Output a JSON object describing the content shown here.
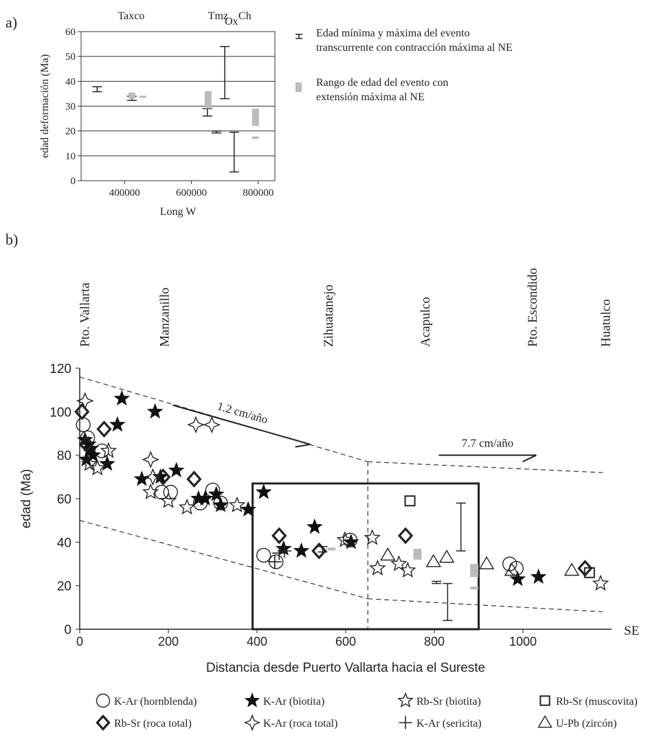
{
  "chart_data": [
    {
      "panel_label": "a)",
      "type": "range",
      "xlabel": "Long W",
      "ylabel": "edad deformación (Ma)",
      "xlim": [
        270000,
        850000
      ],
      "ylim": [
        0,
        60
      ],
      "xticks": [
        400000,
        600000,
        800000
      ],
      "yticks": [
        0,
        10,
        20,
        30,
        40,
        50,
        60
      ],
      "grid": true,
      "top_labels": [
        {
          "text": "Taxco",
          "x": 420000
        },
        {
          "text": "Tmz",
          "x": 680000
        },
        {
          "text": "Ox",
          "x": 720000,
          "subscript": true
        },
        {
          "text": "Ch",
          "x": 760000
        }
      ],
      "legend": {
        "placement": "right",
        "entries": [
          {
            "symbol": "error-bar",
            "text": "Edad mínima y máxima del evento",
            "text2": "transcurrente con contracción máxima al NE"
          },
          {
            "symbol": "gray-bar",
            "text": "Rango de edad del evento con",
            "text2": "extensión máxima al NE"
          }
        ]
      },
      "series": [
        {
          "name": "Edad mínima y máxima del evento transcurrente con contracción máxima al NE",
          "kind": "error-bar",
          "color": "#222222",
          "points": [
            {
              "x": 318000,
              "min": 35.8,
              "max": 37.8
            },
            {
              "x": 422000,
              "min": 32.3,
              "max": 34.0
            },
            {
              "x": 648000,
              "min": 26.0,
              "max": 29.0
            },
            {
              "x": 675000,
              "min": 19.2,
              "max": 20.0
            },
            {
              "x": 700000,
              "min": 33.0,
              "max": 54.0
            },
            {
              "x": 728000,
              "min": 3.5,
              "max": 19.5
            }
          ]
        },
        {
          "name": "Rango de edad del evento con extensión máxima al NE",
          "kind": "gray-bar",
          "color": "#bbbbbb",
          "points": [
            {
              "x": 422000,
              "min": 33.0,
              "max": 35.5
            },
            {
              "x": 455000,
              "min": 33.8,
              "max": 34.2
            },
            {
              "x": 650000,
              "min": 29.0,
              "max": 36.0
            },
            {
              "x": 792000,
              "min": 22.0,
              "max": 29.0
            },
            {
              "x": 792000,
              "min": 16.8,
              "max": 17.8
            }
          ]
        }
      ]
    },
    {
      "panel_label": "b)",
      "type": "scatter",
      "xlabel": "Distancia desde Puerto Vallarta hacia el Sureste",
      "ylabel": "edad (Ma)",
      "xlim": [
        0,
        1200
      ],
      "ylim": [
        0,
        120
      ],
      "xticks": [
        0,
        200,
        400,
        600,
        800,
        1000
      ],
      "yticks": [
        0,
        20,
        40,
        60,
        80,
        100,
        120
      ],
      "grid": false,
      "se_label": "SE",
      "locations": [
        {
          "name": "Pto. Vallarta",
          "x": 10
        },
        {
          "name": "Manzanillo",
          "x": 190
        },
        {
          "name": "Zihuatanejo",
          "x": 560
        },
        {
          "name": "Acapulco",
          "x": 778
        },
        {
          "name": "Pto. Escondido",
          "x": 1020
        },
        {
          "name": "Huatulco",
          "x": 1185
        }
      ],
      "rate_annotations": [
        {
          "text": "1.2 cm/año",
          "arrow_from": [
            210,
            103
          ],
          "arrow_to": [
            520,
            85
          ]
        },
        {
          "text": "7.7 cm/año",
          "arrow_from": [
            810,
            80
          ],
          "arrow_to": [
            1030,
            80
          ]
        }
      ],
      "envelope_lines": [
        {
          "points": [
            [
              0,
              116
            ],
            [
              650,
              77
            ]
          ]
        },
        {
          "points": [
            [
              650,
              77
            ],
            [
              1180,
              72
            ]
          ]
        },
        {
          "points": [
            [
              0,
              50
            ],
            [
              650,
              14
            ]
          ]
        },
        {
          "points": [
            [
              650,
              14
            ],
            [
              1180,
              8
            ]
          ]
        }
      ],
      "dashed_divider_x": 650,
      "highlight_box": {
        "x": [
          390,
          900
        ],
        "y": [
          0,
          67
        ]
      },
      "legend": {
        "placement": "bottom",
        "entries": [
          {
            "symbol": "circle",
            "text": "K-Ar (hornblenda)"
          },
          {
            "symbol": "filled-star",
            "text": "K-Ar (biotita)"
          },
          {
            "symbol": "open-star",
            "text": "Rb-Sr (biotita)"
          },
          {
            "symbol": "square",
            "text": "Rb-Sr (muscovita)"
          },
          {
            "symbol": "diamond",
            "text": "Rb-Sr (roca total)"
          },
          {
            "symbol": "open-4-star",
            "text": "K-Ar (roca total)"
          },
          {
            "symbol": "cross",
            "text": "K-Ar (sericita)"
          },
          {
            "symbol": "triangle",
            "text": "U-Pb (zircón)"
          }
        ]
      },
      "series": [
        {
          "name": "K-Ar (hornblenda)",
          "marker": "circle",
          "points": [
            [
              8,
              94
            ],
            [
              18,
              88
            ],
            [
              50,
              82
            ],
            [
              185,
              63
            ],
            [
              205,
              63
            ],
            [
              272,
              58
            ],
            [
              300,
              64
            ],
            [
              318,
              58
            ],
            [
              415,
              34
            ],
            [
              443,
              31
            ],
            [
              610,
              41
            ],
            [
              970,
              30
            ],
            [
              985,
              28
            ]
          ]
        },
        {
          "name": "K-Ar (biotita)",
          "marker": "filled-star",
          "points": [
            [
              12,
              87
            ],
            [
              20,
              85
            ],
            [
              25,
              83
            ],
            [
              30,
              80
            ],
            [
              15,
              78
            ],
            [
              62,
              76
            ],
            [
              85,
              94
            ],
            [
              95,
              106
            ],
            [
              140,
              69
            ],
            [
              170,
              100
            ],
            [
              182,
              70
            ],
            [
              218,
              73
            ],
            [
              268,
              60
            ],
            [
              283,
              60
            ],
            [
              308,
              62
            ],
            [
              318,
              57
            ],
            [
              380,
              55
            ],
            [
              415,
              63
            ],
            [
              460,
              37
            ],
            [
              500,
              36
            ],
            [
              530,
              47
            ],
            [
              612,
              40
            ],
            [
              988,
              23
            ],
            [
              1035,
              24
            ]
          ]
        },
        {
          "name": "Rb-Sr (biotita)",
          "marker": "open-star",
          "points": [
            [
              22,
              76
            ],
            [
              40,
              74
            ],
            [
              65,
              82
            ],
            [
              160,
              63
            ],
            [
              200,
              59
            ],
            [
              242,
              56
            ],
            [
              355,
              57
            ],
            [
              598,
              41
            ],
            [
              660,
              42
            ],
            [
              672,
              28
            ],
            [
              720,
              30
            ],
            [
              740,
              27
            ],
            [
              1175,
              21
            ]
          ]
        },
        {
          "name": "Rb-Sr (muscovita)",
          "marker": "square",
          "points": [
            [
              745,
              59
            ],
            [
              1150,
              26
            ]
          ]
        },
        {
          "name": "Rb-Sr (roca total)",
          "marker": "diamond",
          "points": [
            [
              5,
              100
            ],
            [
              15,
              85
            ],
            [
              55,
              92
            ],
            [
              188,
              70
            ],
            [
              258,
              69
            ],
            [
              450,
              43
            ],
            [
              540,
              36
            ],
            [
              735,
              43
            ],
            [
              1140,
              28
            ]
          ]
        },
        {
          "name": "K-Ar (roca total)",
          "marker": "open-4-star",
          "points": [
            [
              12,
              105
            ],
            [
              160,
              78
            ],
            [
              165,
              70
            ],
            [
              262,
              94
            ],
            [
              298,
              94
            ]
          ]
        },
        {
          "name": "K-Ar (sericita)",
          "marker": "cross",
          "points": [
            [
              450,
              35
            ],
            [
              462,
              36
            ],
            [
              440,
              31
            ]
          ]
        },
        {
          "name": "U-Pb (zircón)",
          "marker": "triangle",
          "points": [
            [
              695,
              34
            ],
            [
              798,
              31
            ],
            [
              828,
              33
            ],
            [
              918,
              30
            ],
            [
              975,
              27
            ],
            [
              1110,
              27
            ]
          ]
        }
      ],
      "range_bars": [
        {
          "kind": "error-bar",
          "x": 860,
          "min": 36,
          "max": 58
        },
        {
          "kind": "error-bar",
          "x": 805,
          "min": 21,
          "max": 22
        },
        {
          "kind": "error-bar",
          "x": 830,
          "min": 4,
          "max": 21
        },
        {
          "kind": "error-bar",
          "x": 548,
          "min": 35.5,
          "max": 38
        },
        {
          "kind": "gray-bar",
          "x": 890,
          "min": 24,
          "max": 30
        },
        {
          "kind": "gray-bar",
          "x": 890,
          "min": 18.6,
          "max": 19.6
        },
        {
          "kind": "gray-bar",
          "x": 762,
          "min": 32,
          "max": 37
        },
        {
          "kind": "gray-bar",
          "x": 568,
          "min": 36.5,
          "max": 37.5
        }
      ]
    }
  ]
}
